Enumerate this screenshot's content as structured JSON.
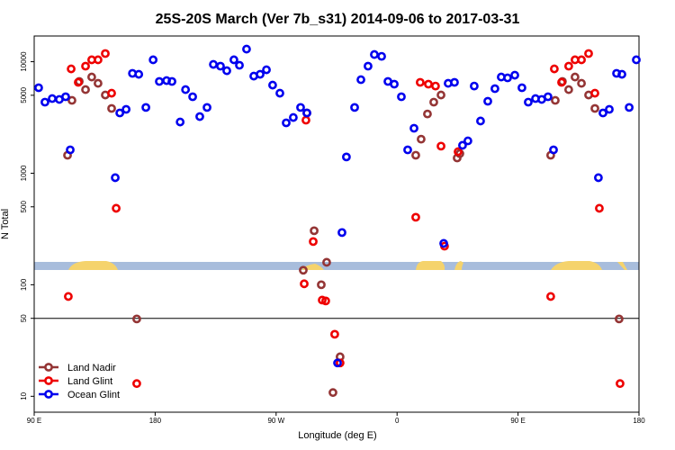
{
  "chart_data": {
    "type": "scatter",
    "title": "25S-20S March (Ver 7b_s31)   2014-09-06 to 2017-03-31",
    "x_label": "Longitude (deg E)",
    "y_label": "N Total",
    "log_y": true,
    "xlim": [
      90,
      540
    ],
    "ylim": [
      7.2,
      17000
    ],
    "xticks": [
      {
        "value": 90,
        "label": "90 E"
      },
      {
        "value": 180,
        "label": "180"
      },
      {
        "value": 270,
        "label": "90 W"
      },
      {
        "value": 360,
        "label": "0"
      },
      {
        "value": 450,
        "label": "90 E"
      },
      {
        "value": 540,
        "label": "180"
      }
    ],
    "yticks": [
      10,
      50,
      100,
      500,
      1000,
      5000,
      10000
    ],
    "reference_line": 50,
    "legend": "bottom-left",
    "series": [
      {
        "name": "Land Nadir",
        "color": "#943535",
        "x": [
          114.8,
          118.1,
          123.5,
          128.2,
          132.8,
          137.5,
          142.9,
          147.6,
          292.9,
          298.3,
          290.2,
          303.6,
          307.6,
          166.3,
          312.3,
          317.6,
          373.9,
          377.9,
          382.6,
          387.3,
          392.7,
          404.7,
          406.7,
          474.3,
          477.7,
          483.0,
          487.7,
          492.4,
          497.2,
          502.5,
          507.2,
          525.2
        ],
        "values": [
          1450,
          4500,
          6650,
          5620,
          7290,
          6400,
          5030,
          3810,
          3470,
          305,
          135,
          100,
          159,
          49.4,
          10.8,
          22.6,
          1450,
          2020,
          3400,
          4340,
          5030,
          1370,
          1500,
          1450,
          4500,
          6650,
          5620,
          7290,
          6400,
          5030,
          3810,
          49.4
        ]
      },
      {
        "name": "Land Glint",
        "color": "#ee0000",
        "x": [
          117.5,
          122.8,
          128.2,
          132.8,
          137.5,
          142.9,
          147.6,
          151.0,
          115.4,
          166.3,
          290.9,
          292.2,
          297.6,
          306.9,
          304.3,
          313.6,
          317.6,
          373.9,
          377.2,
          383.3,
          388.6,
          392.7,
          395.3,
          405.4,
          477.0,
          482.4,
          487.7,
          492.4,
          497.2,
          502.5,
          507.2,
          510.5,
          474.3,
          525.9
        ],
        "values": [
          8620,
          6530,
          9120,
          10400,
          10400,
          11830,
          5220,
          485,
          78.5,
          13.0,
          102,
          2990,
          244,
          71.6,
          72.9,
          36.0,
          19.9,
          403,
          6530,
          6290,
          6050,
          1750,
          222,
          1560,
          8620,
          6530,
          9120,
          10400,
          10400,
          11830,
          5220,
          485,
          78.5,
          13.0
        ]
      },
      {
        "name": "Ocean Glint",
        "color": "#0000ee",
        "x": [
          93.3,
          98.0,
          103.4,
          108.7,
          113.4,
          116.8,
          150.3,
          153.7,
          158.4,
          163.1,
          167.8,
          173.1,
          178.5,
          183.1,
          188.5,
          192.5,
          198.6,
          202.6,
          207.9,
          213.2,
          218.6,
          223.3,
          228.6,
          233.3,
          238.6,
          242.7,
          248.0,
          253.4,
          258.1,
          262.8,
          267.4,
          272.8,
          277.5,
          282.8,
          288.2,
          292.9,
          319.0,
          322.3,
          328.4,
          333.1,
          338.4,
          343.1,
          348.5,
          353.2,
          357.9,
          363.2,
          367.9,
          372.6,
          394.7,
          398.0,
          402.7,
          408.7,
          412.7,
          417.4,
          422.1,
          427.5,
          432.8,
          437.5,
          442.2,
          447.6,
          452.9,
          457.6,
          463.0,
          467.6,
          472.3,
          476.4,
          509.8,
          513.2,
          517.9,
          523.3,
          527.3,
          532.7,
          538.0,
          315.7
        ],
        "values": [
          5840,
          4340,
          4670,
          4590,
          4850,
          1620,
          912,
          3470,
          3740,
          7860,
          7710,
          3890,
          10400,
          6650,
          6770,
          6650,
          2880,
          5620,
          4850,
          3220,
          3890,
          9460,
          9120,
          8300,
          10400,
          9290,
          12970,
          7430,
          7710,
          8460,
          6170,
          5220,
          2830,
          3160,
          3890,
          3470,
          294,
          1400,
          3890,
          6900,
          9120,
          11600,
          11170,
          6650,
          6290,
          4850,
          1620,
          2530,
          235,
          6400,
          6530,
          1780,
          1950,
          6050,
          2940,
          4420,
          5730,
          7290,
          7160,
          7570,
          5840,
          4340,
          4670,
          4590,
          4850,
          1620,
          912,
          3470,
          3740,
          7860,
          7710,
          3890,
          10400,
          19.9
        ]
      }
    ]
  }
}
